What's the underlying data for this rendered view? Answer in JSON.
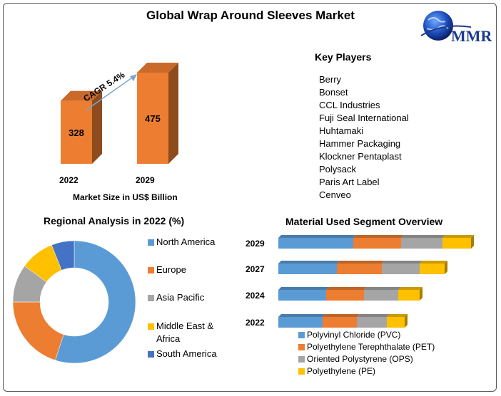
{
  "title": "Global Wrap Around Sleeves Market",
  "logo_text": "MMR",
  "key_players": {
    "heading": "Key Players",
    "items": [
      "Berry",
      "Bonset",
      "CCL Industries",
      "Fuji Seal International",
      "Huhtamaki",
      "Hammer Packaging",
      "Klockner Pentaplast",
      "Polysack",
      "Paris Art Label",
      "Cenveo"
    ]
  },
  "colors": {
    "orange": "#ED7D31",
    "blue": "#5B9BD5",
    "gray": "#A5A5A5",
    "yellow": "#FFC000",
    "darkblue": "#4472C4"
  },
  "chart_data": [
    {
      "type": "bar",
      "categories": [
        "2022",
        "2029"
      ],
      "values": [
        328,
        475
      ],
      "xlabel": "Market Size in US$ Billion",
      "annotation": "CAGR 5.4%"
    },
    {
      "type": "pie",
      "title": "Regional Analysis in 2022 (%)",
      "categories": [
        "North America",
        "Europe",
        "Asia Pacific",
        "Middle East & Africa",
        "South America"
      ],
      "values": [
        55,
        20,
        10,
        9,
        6
      ]
    },
    {
      "type": "bar",
      "orientation": "horizontal",
      "stacked": true,
      "title": "Material Used Segment Overview",
      "categories": [
        "2029",
        "2027",
        "2024",
        "2022"
      ],
      "series": [
        {
          "name": "Polyvinyl Chloride (PVC)",
          "values": [
            105,
            82,
            67,
            62
          ]
        },
        {
          "name": "Polyethylene Terephthalate (PET)",
          "values": [
            67,
            63,
            53,
            48
          ]
        },
        {
          "name": "Oriented Polystyrene (OPS)",
          "values": [
            58,
            53,
            48,
            42
          ]
        },
        {
          "name": "Polyethylene (PE)",
          "values": [
            40,
            35,
            30,
            25
          ]
        }
      ]
    }
  ]
}
